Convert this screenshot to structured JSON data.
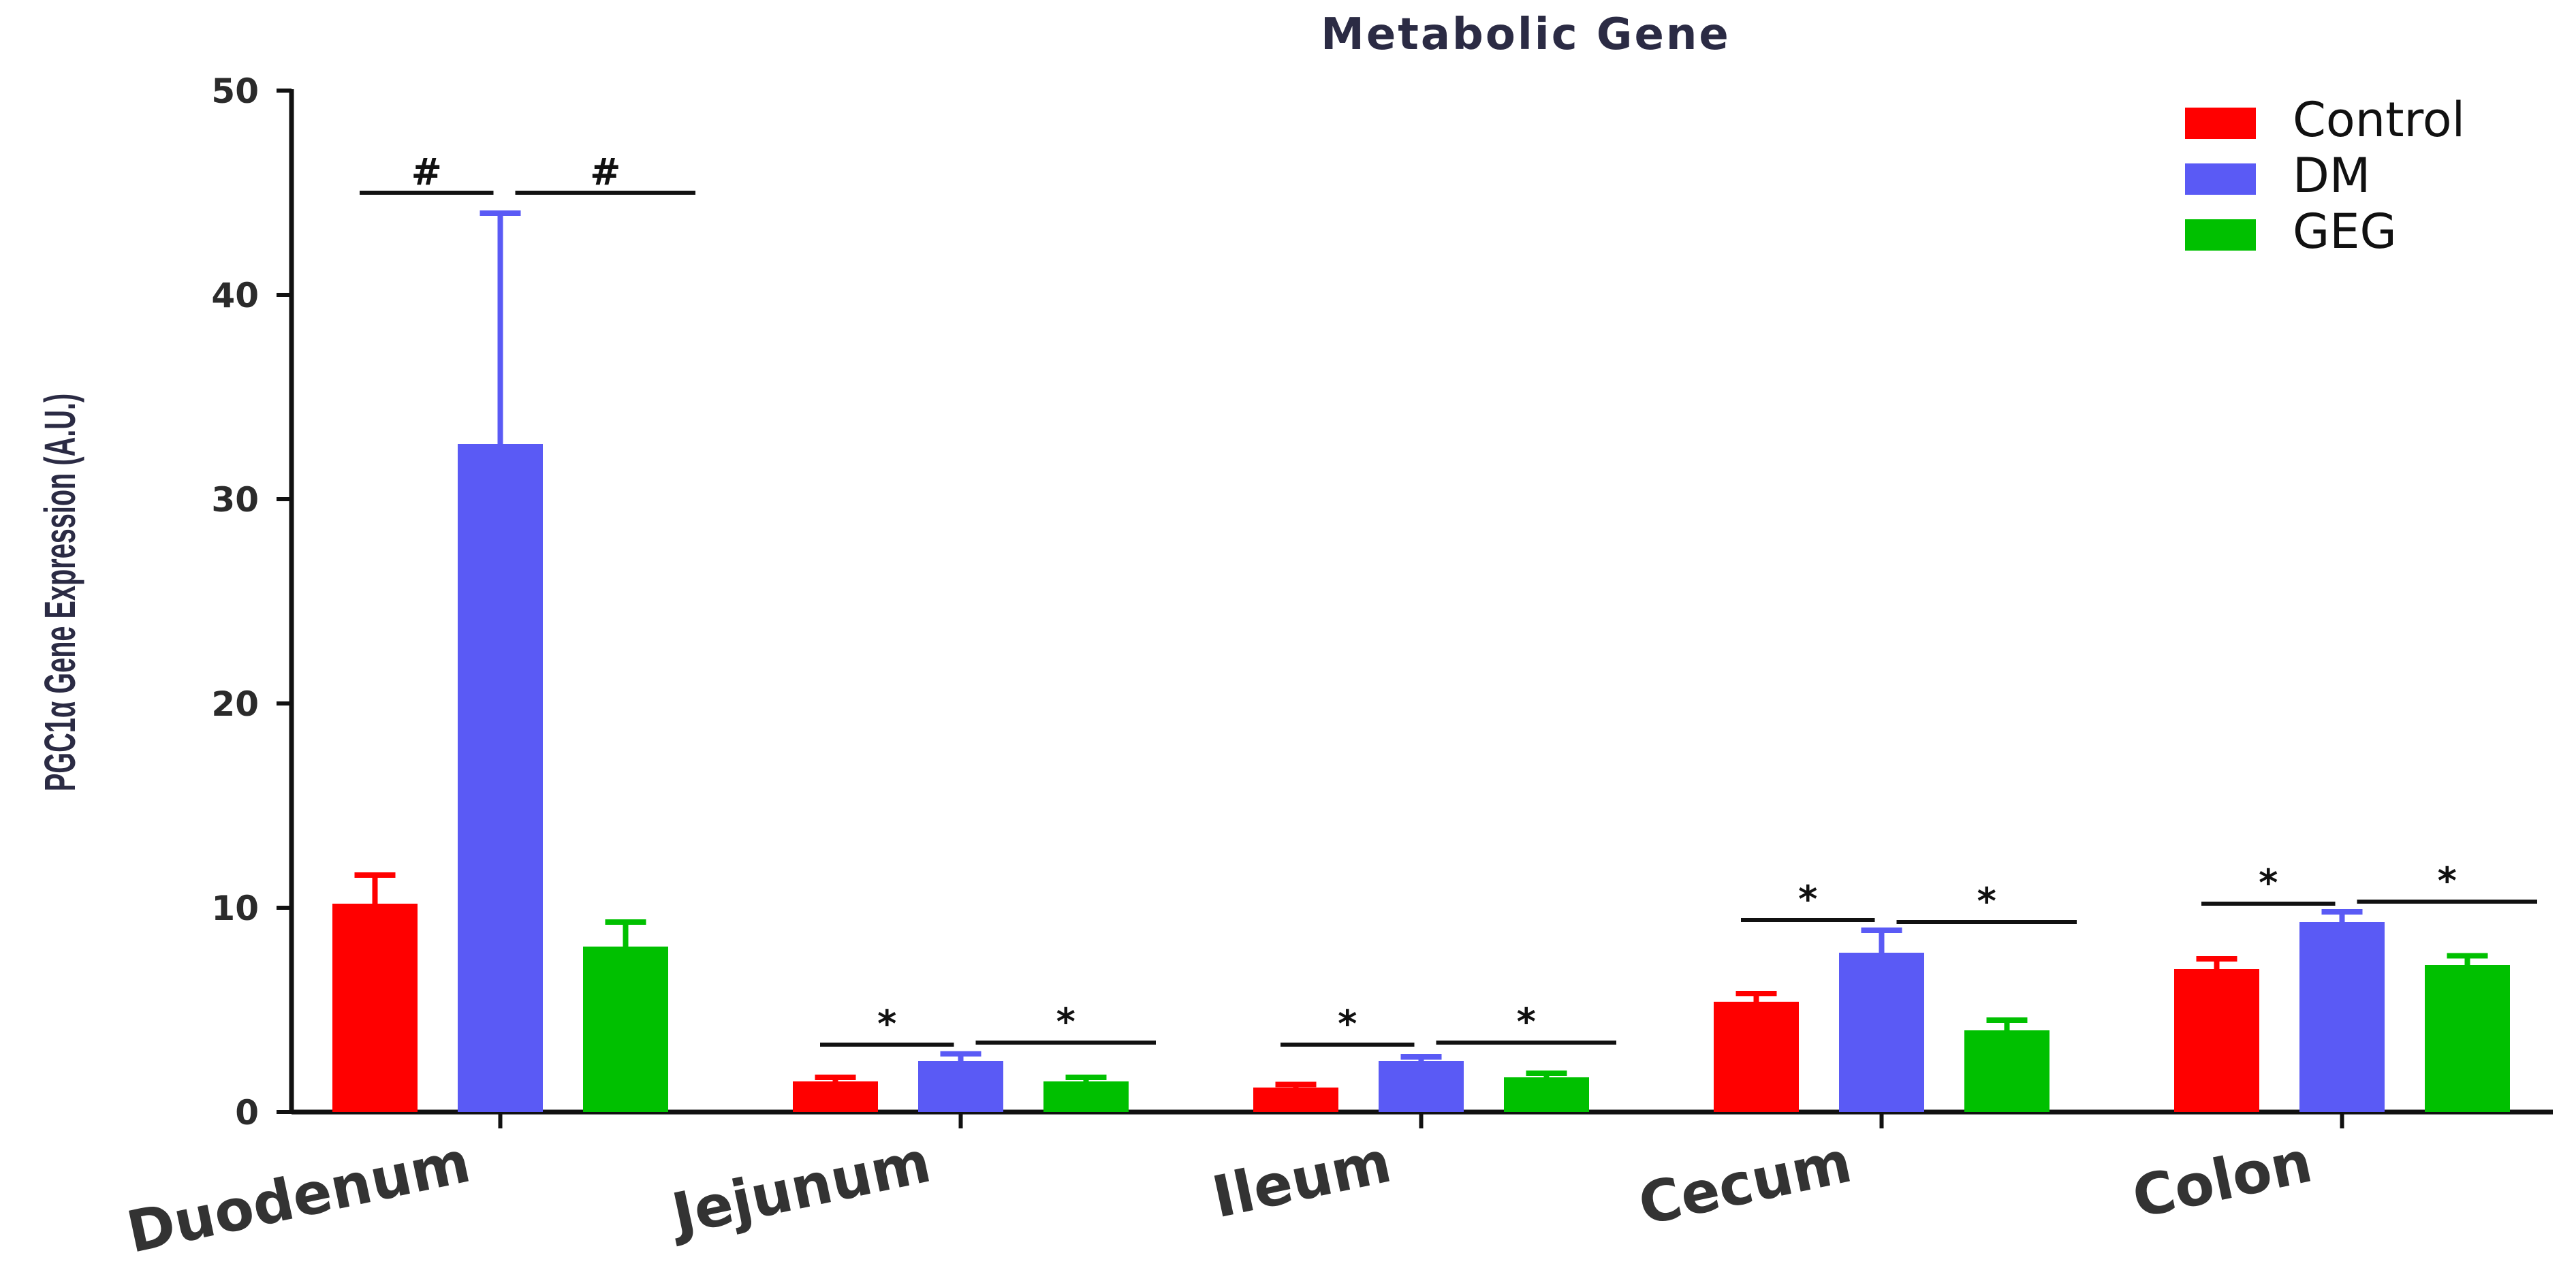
{
  "chart_data": {
    "type": "bar",
    "title": "Metabolic Gene",
    "ylabel": "PGC1α Gene Expression (A.U.)",
    "xlabel": "",
    "ylim": [
      0,
      50
    ],
    "yticks": [
      0,
      10,
      20,
      30,
      40,
      50
    ],
    "categories": [
      "Duodenum",
      "Jejunum",
      "Ileum",
      "Cecum",
      "Colon"
    ],
    "series": [
      {
        "name": "Control",
        "color": "#ff0000",
        "values": [
          10.2,
          1.5,
          1.2,
          5.4,
          7.0
        ],
        "errors": [
          1.4,
          0.2,
          0.15,
          0.4,
          0.5
        ]
      },
      {
        "name": "DM",
        "color": "#5a5af5",
        "values": [
          32.7,
          2.5,
          2.5,
          7.8,
          9.3
        ],
        "errors": [
          11.3,
          0.35,
          0.2,
          1.1,
          0.5
        ]
      },
      {
        "name": "GEG",
        "color": "#00c000",
        "values": [
          8.1,
          1.5,
          1.7,
          4.0,
          7.2
        ],
        "errors": [
          1.2,
          0.2,
          0.2,
          0.5,
          0.45
        ]
      }
    ],
    "legend_position": "top-right",
    "grid": false,
    "annotations": [
      {
        "category": "Duodenum",
        "symbol": "#",
        "between": [
          "Control",
          "DM"
        ],
        "y": 45
      },
      {
        "category": "Duodenum",
        "symbol": "#",
        "between": [
          "DM",
          "GEG"
        ],
        "y": 45
      },
      {
        "category": "Jejunum",
        "symbol": "*",
        "between": [
          "Control",
          "DM"
        ],
        "y": 3.3
      },
      {
        "category": "Jejunum",
        "symbol": "*",
        "between": [
          "DM",
          "GEG"
        ],
        "y": 3.4
      },
      {
        "category": "Ileum",
        "symbol": "*",
        "between": [
          "Control",
          "DM"
        ],
        "y": 3.3
      },
      {
        "category": "Ileum",
        "symbol": "*",
        "between": [
          "DM",
          "GEG"
        ],
        "y": 3.4
      },
      {
        "category": "Cecum",
        "symbol": "*",
        "between": [
          "Control",
          "DM"
        ],
        "y": 9.4
      },
      {
        "category": "Cecum",
        "symbol": "*",
        "between": [
          "DM",
          "GEG"
        ],
        "y": 9.3
      },
      {
        "category": "Colon",
        "symbol": "*",
        "between": [
          "Control",
          "DM"
        ],
        "y": 10.2
      },
      {
        "category": "Colon",
        "symbol": "*",
        "between": [
          "DM",
          "GEG"
        ],
        "y": 10.3
      }
    ]
  }
}
